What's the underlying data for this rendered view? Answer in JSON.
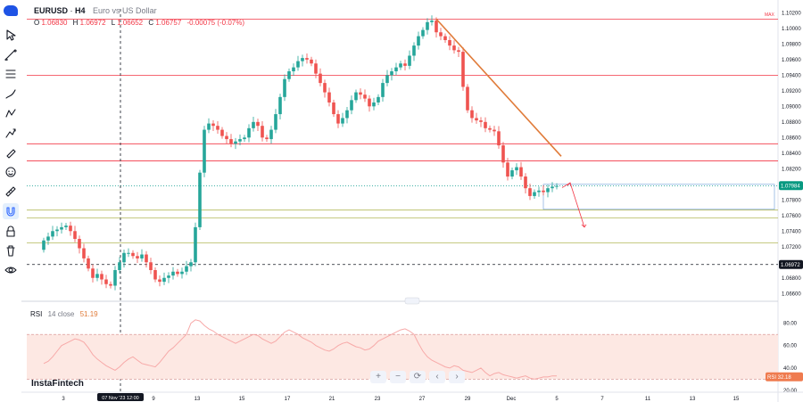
{
  "symbol": "EURUSD",
  "timeframe": "H4",
  "description": "Euro vs US Dollar",
  "ohlc": {
    "o_label": "O",
    "o": "1.06830",
    "h_label": "H",
    "h": "1.06972",
    "l_label": "L",
    "l": "1.06652",
    "c_label": "C",
    "c": "1.06757",
    "change": "-0.00075 (-0.07%)"
  },
  "max_label": "MAX",
  "price_tag": "1.07984",
  "crosshair_price_tag": "1.06972",
  "crosshair_date_label": "07 Nov '23   12:00",
  "rsi": {
    "name": "RSI",
    "params": "14  close",
    "value": "51.19",
    "tag_label": "RSI",
    "tag_value": "32.18"
  },
  "watermark": "InstaFintech",
  "colors": {
    "up": "#26a69a",
    "down": "#ef5350",
    "resistance": "#f23645",
    "support": "#b3b85a",
    "trendline": "#e07b39",
    "rsi_line": "#f7a9a8",
    "rsi_band": "#fde8e3",
    "price_tag_bg": "#089981"
  },
  "icons": [
    "cursor-icon",
    "trend-line-icon",
    "fib-icon",
    "brush-icon",
    "pattern-icon",
    "forecast-icon",
    "pen-icon",
    "emoji-icon",
    "ruler-icon",
    "magnet-icon",
    "lock-icon",
    "trash-icon",
    "eye-icon"
  ],
  "chart_data": {
    "type": "candlestick",
    "title": "EURUSD · H4 · Euro vs US Dollar",
    "x_tick_labels": [
      "3",
      "9",
      "13",
      "15",
      "17",
      "21",
      "23",
      "27",
      "29",
      "Dec",
      "5",
      "7",
      "11",
      "13",
      "15"
    ],
    "y_tick_labels": [
      "1.10200",
      "1.10000",
      "1.09800",
      "1.09600",
      "1.09400",
      "1.09200",
      "1.09000",
      "1.08800",
      "1.08600",
      "1.08400",
      "1.08200",
      "1.08000",
      "1.07800",
      "1.07600",
      "1.07400",
      "1.07200",
      "1.07000",
      "1.06800",
      "1.06600"
    ],
    "ylim": [
      1.065,
      1.1025
    ],
    "close_series": [
      1.0728,
      1.0733,
      1.074,
      1.0742,
      1.0745,
      1.0747,
      1.074,
      1.073,
      1.0718,
      1.0705,
      1.0692,
      1.068,
      1.0685,
      1.0678,
      1.0672,
      1.067,
      1.069,
      1.07,
      1.0712,
      1.0712,
      1.0708,
      1.0705,
      1.071,
      1.07,
      1.069,
      1.0678,
      1.0675,
      1.068,
      1.0683,
      1.0688,
      1.0685,
      1.0688,
      1.0695,
      1.07,
      1.0745,
      1.0815,
      1.087,
      1.0878,
      1.0875,
      1.087,
      1.0862,
      1.0858,
      1.0852,
      1.0855,
      1.0858,
      1.086,
      1.0872,
      1.088,
      1.0875,
      1.086,
      1.0858,
      1.087,
      1.089,
      1.0912,
      1.0935,
      1.0945,
      1.095,
      1.0958,
      1.0962,
      1.096,
      1.0955,
      1.0942,
      1.093,
      1.0918,
      1.0905,
      1.089,
      1.0878,
      1.0885,
      1.0895,
      1.0908,
      1.0918,
      1.0915,
      1.091,
      1.09,
      1.0905,
      1.0912,
      1.093,
      1.094,
      1.0945,
      1.095,
      1.0955,
      1.0952,
      1.0965,
      1.0978,
      1.099,
      1.0998,
      1.1008,
      1.101,
      1.0995,
      1.099,
      1.0985,
      1.0978,
      1.0972,
      1.097,
      1.0925,
      1.0895,
      1.0885,
      1.0882,
      1.088,
      1.0872,
      1.087,
      1.0868,
      1.085,
      1.0828,
      1.081,
      1.0818,
      1.0822,
      1.081,
      1.0795,
      1.0785,
      1.079,
      1.0792,
      1.079,
      1.0795,
      1.0797,
      1.0798
    ],
    "levels": {
      "resistance": [
        1.1012,
        1.094,
        1.0852,
        1.083
      ],
      "support": [
        1.0767,
        1.0757,
        1.0725
      ],
      "dotted": [
        1.0798
      ],
      "crosshair": [
        1.06972
      ]
    },
    "trendline": {
      "from": [
        88,
        1.1012
      ],
      "to": [
        116,
        1.0836
      ]
    },
    "projection": {
      "up_to": 1.0802,
      "down_to": 1.0745
    },
    "rsi": {
      "ylim": [
        20,
        90
      ],
      "tick_labels": [
        "80.00",
        "60.00",
        "40.00",
        "20.00"
      ],
      "overbought": 70,
      "oversold": 30,
      "values": [
        44,
        46,
        50,
        55,
        60,
        62,
        64,
        66,
        65,
        63,
        58,
        52,
        48,
        45,
        42,
        40,
        38,
        41,
        45,
        48,
        50,
        47,
        44,
        43,
        42,
        41,
        45,
        50,
        55,
        58,
        62,
        66,
        70,
        80,
        83,
        82,
        78,
        75,
        73,
        70,
        68,
        66,
        64,
        62,
        64,
        66,
        68,
        70,
        69,
        66,
        64,
        62,
        64,
        68,
        72,
        74,
        72,
        70,
        67,
        65,
        63,
        60,
        58,
        56,
        55,
        57,
        60,
        62,
        63,
        61,
        59,
        58,
        56,
        57,
        60,
        64,
        66,
        68,
        70,
        72,
        74,
        75,
        73,
        70,
        62,
        55,
        50,
        47,
        45,
        43,
        41,
        40,
        42,
        41,
        38,
        37,
        36,
        38,
        40,
        36,
        33,
        35,
        36,
        34,
        33,
        32,
        31,
        32,
        33,
        31,
        30,
        31,
        32,
        32,
        33,
        33
      ]
    }
  }
}
